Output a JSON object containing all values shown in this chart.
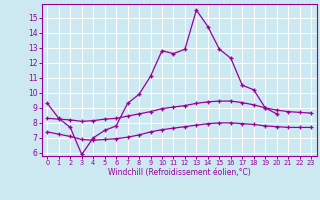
{
  "xlabel": "Windchill (Refroidissement éolien,°C)",
  "line_main_x": [
    0,
    1,
    2,
    3,
    4,
    5,
    6,
    7,
    8,
    9,
    10,
    11,
    12,
    13,
    14,
    15,
    16,
    17,
    18,
    19,
    20
  ],
  "line_main_y": [
    9.3,
    8.3,
    7.7,
    5.9,
    7.0,
    7.5,
    7.8,
    9.3,
    9.9,
    11.1,
    12.8,
    12.6,
    12.9,
    15.5,
    14.4,
    12.9,
    12.3,
    10.5,
    10.2,
    9.0,
    8.6
  ],
  "line_upper_x": [
    0,
    1,
    2,
    3,
    4,
    5,
    6,
    7,
    8,
    9,
    10,
    11,
    12,
    13,
    14,
    15,
    16,
    17,
    18,
    19,
    20,
    21,
    22,
    23
  ],
  "line_upper_y": [
    8.3,
    8.25,
    8.2,
    8.1,
    8.15,
    8.25,
    8.3,
    8.45,
    8.6,
    8.75,
    8.95,
    9.05,
    9.15,
    9.3,
    9.4,
    9.45,
    9.45,
    9.35,
    9.2,
    9.0,
    8.85,
    8.75,
    8.7,
    8.65
  ],
  "line_lower_x": [
    0,
    1,
    2,
    3,
    4,
    5,
    6,
    7,
    8,
    9,
    10,
    11,
    12,
    13,
    14,
    15,
    16,
    17,
    18,
    19,
    20,
    21,
    22,
    23
  ],
  "line_lower_y": [
    7.4,
    7.25,
    7.1,
    6.9,
    6.85,
    6.9,
    6.95,
    7.05,
    7.2,
    7.4,
    7.55,
    7.65,
    7.75,
    7.85,
    7.95,
    8.0,
    8.0,
    7.95,
    7.9,
    7.8,
    7.75,
    7.7,
    7.7,
    7.7
  ],
  "ylim_min": 5.8,
  "ylim_max": 15.9,
  "xlim_min": -0.5,
  "xlim_max": 23.5,
  "yticks": [
    6,
    7,
    8,
    9,
    10,
    11,
    12,
    13,
    14,
    15
  ],
  "xticks": [
    0,
    1,
    2,
    3,
    4,
    5,
    6,
    7,
    8,
    9,
    10,
    11,
    12,
    13,
    14,
    15,
    16,
    17,
    18,
    19,
    20,
    21,
    22,
    23
  ],
  "line_color": "#990099",
  "bg_color": "#cce8f0",
  "grid_color": "#ffffff"
}
